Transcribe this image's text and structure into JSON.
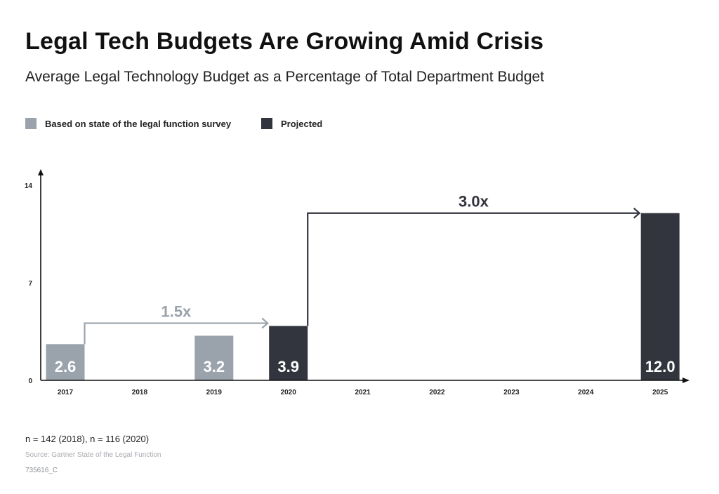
{
  "colors": {
    "survey": "#9aa2ab",
    "projected": "#32353d",
    "axis": "#111111",
    "arrow_small": "#9aa2ab",
    "arrow_large": "#32353d"
  },
  "footnote": "n = 142 (2018), n = 116 (2020)",
  "source": "Source: Gartner State of the Legal Function",
  "code": "735616_C",
  "chart_data": {
    "type": "bar",
    "title": "Legal Tech Budgets Are Growing Amid Crisis",
    "subtitle": "Average Legal Technology Budget as a Percentage of Total Department Budget",
    "xlabel": "",
    "ylabel": "",
    "ylim": [
      0,
      14
    ],
    "yticks": [
      0,
      7,
      14
    ],
    "grid": false,
    "legend_position": "top-left",
    "categories": [
      "2017",
      "2018",
      "2019",
      "2020",
      "2021",
      "2022",
      "2023",
      "2024",
      "2025"
    ],
    "series": [
      {
        "name": "Based on state of the legal function survey",
        "values": [
          2.6,
          null,
          3.2,
          null,
          null,
          null,
          null,
          null,
          null
        ],
        "labels": [
          "2.6",
          null,
          "3.2",
          null,
          null,
          null,
          null,
          null,
          null
        ]
      },
      {
        "name": "Projected",
        "values": [
          null,
          null,
          null,
          3.9,
          null,
          null,
          null,
          null,
          12.0
        ],
        "labels": [
          null,
          null,
          null,
          "3.9",
          null,
          null,
          null,
          null,
          "12.0"
        ]
      }
    ],
    "annotations": [
      {
        "text": "1.5x",
        "from": "2017",
        "to": "2020",
        "level": 4.1,
        "color_key": "arrow_small"
      },
      {
        "text": "3.0x",
        "from": "2020",
        "to": "2025",
        "level": 12.0,
        "color_key": "arrow_large"
      }
    ]
  }
}
